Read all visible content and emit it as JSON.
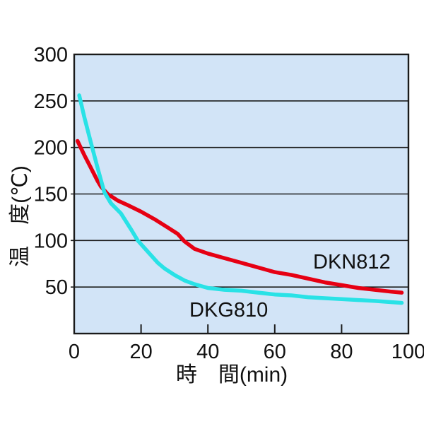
{
  "chart_data": {
    "type": "line",
    "title": "",
    "xlabel": "時　間(min)",
    "ylabel": "温　度(℃)",
    "xlim": [
      0,
      100
    ],
    "ylim": [
      0,
      300
    ],
    "xticks": [
      0,
      20,
      40,
      60,
      80,
      100
    ],
    "yticks": [
      50,
      100,
      150,
      200,
      250,
      300
    ],
    "grid": "horizontal-only",
    "legend_position": "inline-labels-on-plot",
    "plot_bg_color": "#d2e4f7",
    "axis_color": "#1a1a1a",
    "series": [
      {
        "name": "DKN812",
        "color": "#e60013",
        "x": [
          1,
          3,
          5,
          7,
          8,
          10,
          13,
          16,
          20,
          24,
          28,
          31,
          33,
          36,
          40,
          45,
          50,
          55,
          60,
          65,
          70,
          75,
          80,
          85,
          90,
          95,
          98
        ],
        "y": [
          207,
          192,
          178,
          164,
          158,
          150,
          143,
          138,
          131,
          123,
          114,
          107,
          99,
          91,
          86,
          81,
          76,
          71,
          66,
          63,
          59,
          55,
          52,
          49,
          47,
          45,
          44
        ]
      },
      {
        "name": "DKG810",
        "color": "#29e2e6",
        "x": [
          1.5,
          3,
          5,
          7,
          9,
          11,
          14,
          17,
          19,
          22,
          25,
          27,
          30,
          33,
          36,
          40,
          45,
          50,
          55,
          60,
          65,
          70,
          75,
          80,
          85,
          90,
          98
        ],
        "y": [
          256,
          233,
          205,
          178,
          152,
          140,
          129,
          112,
          100,
          88,
          76,
          70,
          63,
          57,
          53,
          49,
          47,
          46,
          44,
          42,
          41,
          39,
          38,
          37,
          36,
          35,
          33
        ]
      }
    ]
  }
}
